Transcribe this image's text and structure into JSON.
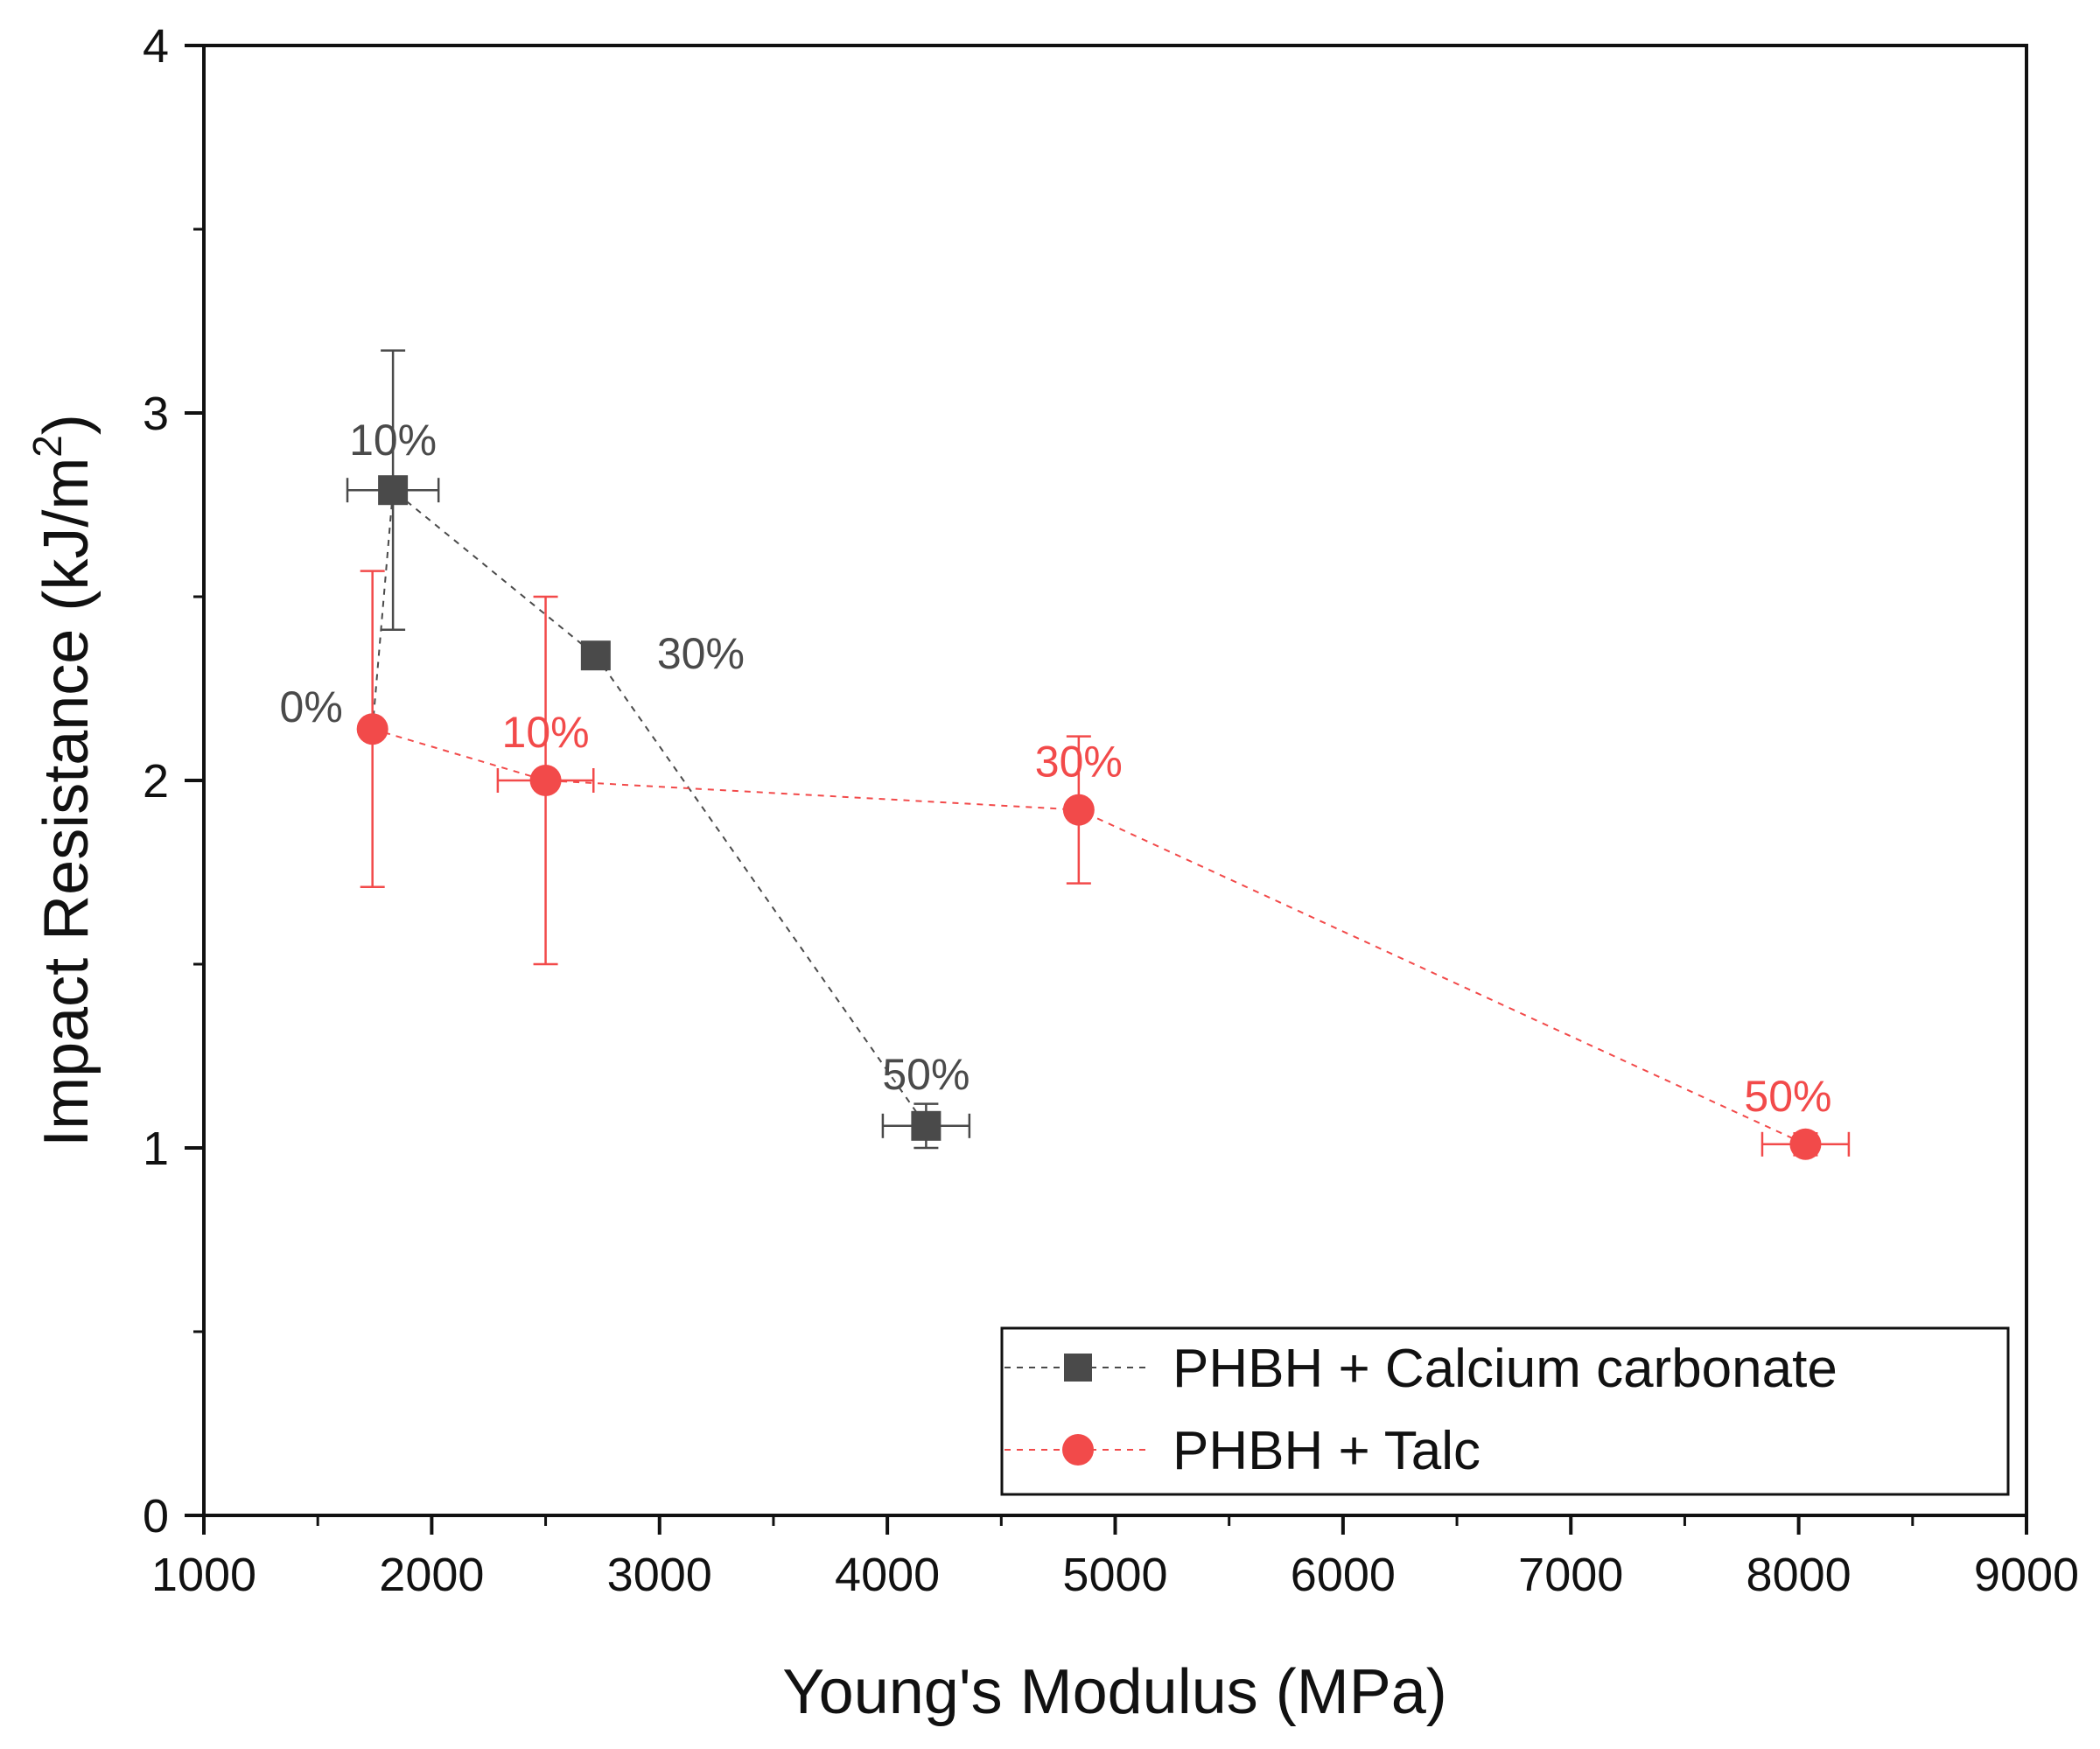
{
  "chart_data": {
    "type": "scatter",
    "title": "",
    "xlabel": "Young's Modulus (MPa)",
    "ylabel_main": "Impact Resistance (kJ/m",
    "ylabel_sup": "2",
    "ylabel_close": ")",
    "xlim": [
      1000,
      9000
    ],
    "ylim": [
      0,
      4
    ],
    "x_ticks": [
      1000,
      2000,
      3000,
      4000,
      5000,
      6000,
      7000,
      8000,
      9000
    ],
    "y_ticks": [
      0,
      1,
      2,
      3,
      4
    ],
    "x_tick_labels": [
      "1000",
      "2000",
      "3000",
      "4000",
      "5000",
      "6000",
      "7000",
      "8000",
      "9000"
    ],
    "y_tick_labels": [
      "0",
      "1",
      "2",
      "3",
      "4"
    ],
    "grid": false,
    "legend_position": "bottom-right",
    "series": [
      {
        "name": "PHBH + Calcium carbonate",
        "color": "#4a4a4a",
        "marker": "square",
        "line_style": "dashed",
        "points": [
          {
            "x": 1740,
            "y": 2.14,
            "xerr": 0,
            "yerr": 0
          },
          {
            "x": 1830,
            "y": 2.79,
            "xerr": 200,
            "yerr": 0.38
          },
          {
            "x": 2720,
            "y": 2.34,
            "xerr": 0,
            "yerr": 0
          },
          {
            "x": 4170,
            "y": 1.06,
            "xerr": 190,
            "yerr": 0.06
          }
        ],
        "labels": [
          {
            "text": "10%",
            "point": 1
          },
          {
            "text": "30%",
            "point": 2
          },
          {
            "text": "50%",
            "point": 3
          }
        ]
      },
      {
        "name": "PHBH + Talc",
        "color": "#f24a4a",
        "marker": "circle",
        "line_style": "dashed",
        "points": [
          {
            "x": 1740,
            "y": 2.14,
            "xerr": 0,
            "yerr": 0.43
          },
          {
            "x": 2500,
            "y": 2.0,
            "xerr": 210,
            "yerr": 0.5
          },
          {
            "x": 4840,
            "y": 1.92,
            "xerr": 0,
            "yerr": 0.2
          },
          {
            "x": 8030,
            "y": 1.01,
            "xerr": 190,
            "yerr": 0.03
          }
        ],
        "labels": [
          {
            "text": "0%",
            "point": 0,
            "color": "#4a4a4a"
          },
          {
            "text": "10%",
            "point": 1
          },
          {
            "text": "30%",
            "point": 2
          },
          {
            "text": "50%",
            "point": 3
          }
        ]
      }
    ]
  }
}
